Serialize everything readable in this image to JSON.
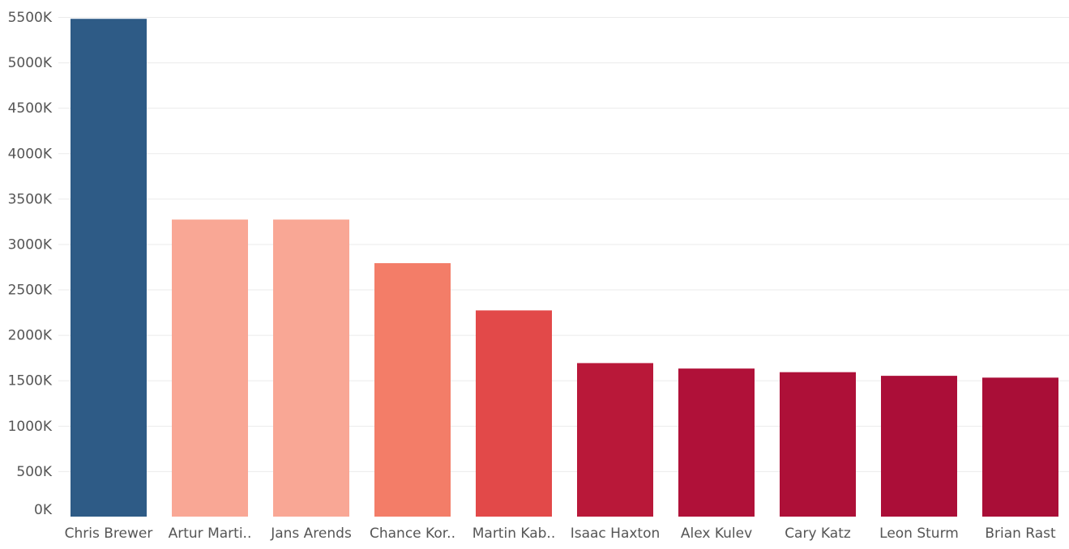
{
  "chart_data": {
    "type": "bar",
    "title": "",
    "xlabel": "",
    "ylabel": "",
    "categories": [
      "Chris Brewer",
      "Artur Marti..",
      "Jans Arends",
      "Chance Kor..",
      "Martin Kab..",
      "Isaac Haxton",
      "Alex Kulev",
      "Cary Katz",
      "Leon Sturm",
      "Brian Rast"
    ],
    "values": [
      5480000,
      3270000,
      3270000,
      2790000,
      2270000,
      1690000,
      1630000,
      1590000,
      1550000,
      1530000
    ],
    "colors": [
      "#2e5b86",
      "#f9a795",
      "#f9a795",
      "#f37d68",
      "#e24949",
      "#b91839",
      "#b01139",
      "#ae1038",
      "#ab0e38",
      "#a90e37"
    ],
    "ylim": [
      0,
      5500000
    ],
    "y_ticks": [
      0,
      500000,
      1000000,
      1500000,
      2000000,
      2500000,
      3000000,
      3500000,
      4000000,
      4500000,
      5000000,
      5500000
    ],
    "y_tick_labels": [
      "0K",
      "500K",
      "1000K",
      "1500K",
      "2000K",
      "2500K",
      "3000K",
      "3500K",
      "4000K",
      "4500K",
      "5000K",
      "5500K"
    ],
    "grid": true,
    "legend": "none"
  }
}
